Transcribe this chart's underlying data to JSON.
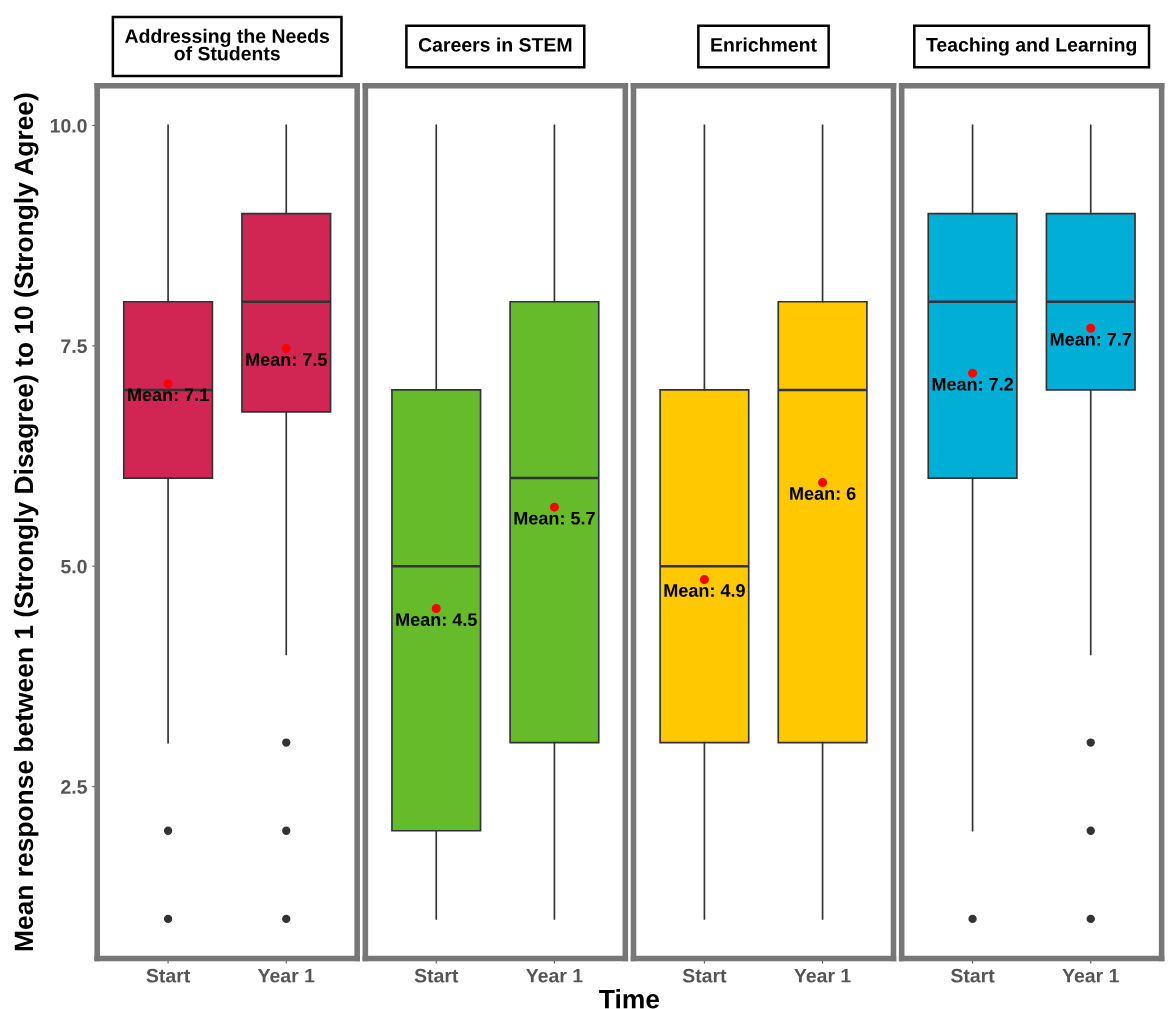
{
  "chart_data": [
    {
      "type": "box",
      "title": "Addressing the Needs\nof Students",
      "ylabel": "Mean response between 1 (Strongly Disagree) to 10 (Strongly Agree)",
      "categories": [
        "Start",
        "Year 1"
      ],
      "colors": [
        "#d12553",
        "#d12553"
      ],
      "boxes": [
        {
          "low": 3,
          "q1": 6,
          "median": 7,
          "q3": 8,
          "high": 10,
          "outliers": [
            2,
            1
          ]
        },
        {
          "low": 4,
          "q1": 6.75,
          "median": 8,
          "q3": 9,
          "high": 10,
          "outliers": [
            3,
            2,
            1
          ]
        }
      ],
      "series": [
        {
          "type": "scatter",
          "x": [
            "Start",
            "Year 1"
          ],
          "values": [
            7.07,
            7.47
          ],
          "color": "#ff0000"
        }
      ],
      "annotations": [
        {
          "text": "Mean: 7.1",
          "x": "Start",
          "y": 7.07
        },
        {
          "text": "Mean: 7.5",
          "x": "Year 1",
          "y": 7.47
        }
      ],
      "ylim": [
        0.55,
        10.45
      ],
      "yticks": [
        2.5,
        {
          "value": 5,
          "label": "5.0"
        },
        7.5,
        {
          "value": 10,
          "label": "10.0"
        }
      ],
      "grid": false
    },
    {
      "type": "box",
      "title": "Careers in STEM",
      "xlabel": "Time",
      "categories": [
        "Start",
        "Year 1"
      ],
      "colors": [
        "#66bb2a",
        "#66bb2a"
      ],
      "boxes": [
        {
          "low": 1,
          "q1": 2,
          "median": 5,
          "q3": 7,
          "high": 10
        },
        {
          "low": 1,
          "q1": 3,
          "median": 6,
          "q3": 8,
          "high": 10
        }
      ],
      "series": [
        {
          "type": "scatter",
          "x": [
            "Start",
            "Year 1"
          ],
          "values": [
            4.52,
            5.67
          ],
          "color": "#ff0000"
        }
      ],
      "annotations": [
        {
          "text": "Mean: 4.5",
          "x": "Start",
          "y": 4.52
        },
        {
          "text": "Mean: 5.7",
          "x": "Year 1",
          "y": 5.67
        }
      ],
      "ylim": [
        0.55,
        10.45
      ],
      "tick_labels": "x",
      "grid": false
    },
    {
      "type": "box",
      "title": "Enrichment",
      "categories": [
        "Start",
        "Year 1"
      ],
      "colors": [
        "#ffc800",
        "#ffc800"
      ],
      "boxes": [
        {
          "low": 1,
          "q1": 3,
          "median": 5,
          "q3": 7,
          "high": 10
        },
        {
          "low": 1,
          "q1": 3,
          "median": 7,
          "q3": 8,
          "high": 10
        }
      ],
      "series": [
        {
          "type": "scatter",
          "x": [
            "Start",
            "Year 1"
          ],
          "values": [
            4.85,
            5.95
          ],
          "color": "#ff0000"
        }
      ],
      "annotations": [
        {
          "text": "Mean: 4.9",
          "x": "Start",
          "y": 4.85
        },
        {
          "text": "Mean: 6",
          "x": "Year 1",
          "y": 5.95
        }
      ],
      "ylim": [
        0.55,
        10.45
      ],
      "tick_labels": "x",
      "grid": false
    },
    {
      "type": "box",
      "title": "Teaching and Learning",
      "categories": [
        "Start",
        "Year 1"
      ],
      "colors": [
        "#00aed6",
        "#00aed6"
      ],
      "boxes": [
        {
          "low": 2,
          "q1": 6,
          "median": 8,
          "q3": 9,
          "high": 10,
          "outliers": [
            1
          ]
        },
        {
          "low": 4,
          "q1": 7,
          "median": 8,
          "q3": 9,
          "high": 10,
          "outliers": [
            3,
            2,
            1
          ]
        }
      ],
      "series": [
        {
          "type": "scatter",
          "x": [
            "Start",
            "Year 1"
          ],
          "values": [
            7.19,
            7.7
          ],
          "color": "#ff0000"
        }
      ],
      "annotations": [
        {
          "text": "Mean: 7.2",
          "x": "Start",
          "y": 7.19
        },
        {
          "text": "Mean: 7.7",
          "x": "Year 1",
          "y": 7.7
        }
      ],
      "ylim": [
        0.55,
        10.45
      ],
      "tick_labels": "x",
      "grid": false
    }
  ]
}
